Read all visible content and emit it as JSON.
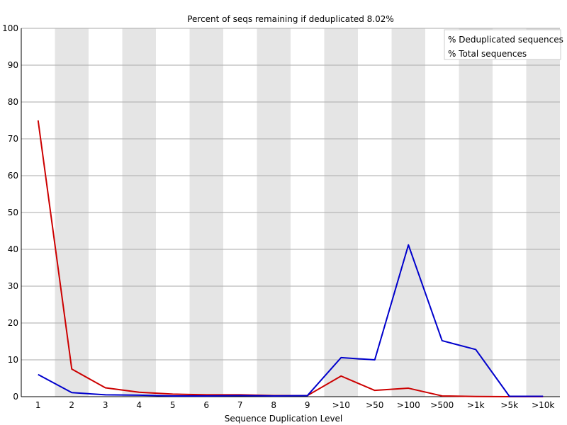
{
  "chart_data": {
    "type": "line",
    "title": "Percent of seqs remaining if deduplicated 8.02%",
    "xlabel": "Sequence Duplication Level",
    "ylabel": "",
    "categories": [
      "1",
      "2",
      "3",
      "4",
      "5",
      "6",
      "7",
      "8",
      "9",
      ">10",
      ">50",
      ">100",
      ">500",
      ">1k",
      ">5k",
      ">10k"
    ],
    "ylim": [
      0,
      100
    ],
    "yticks": [
      0,
      10,
      20,
      30,
      40,
      50,
      60,
      70,
      80,
      90,
      100
    ],
    "grid": true,
    "legend_position": "top-right",
    "series": [
      {
        "name": "% Deduplicated sequences",
        "color": "#cc0000",
        "values": [
          75.0,
          7.5,
          2.4,
          1.2,
          0.7,
          0.5,
          0.5,
          0.3,
          0.3,
          5.6,
          1.7,
          2.3,
          0.2,
          0.05,
          0.0,
          0.0
        ]
      },
      {
        "name": "% Total sequences",
        "color": "#0000cc",
        "values": [
          6.0,
          1.1,
          0.5,
          0.4,
          0.2,
          0.2,
          0.3,
          0.2,
          0.3,
          10.6,
          10.0,
          41.2,
          15.2,
          12.8,
          0.1,
          0.1
        ]
      }
    ],
    "band_color": "#e5e5e5",
    "grid_color": "#aaaaaa"
  }
}
